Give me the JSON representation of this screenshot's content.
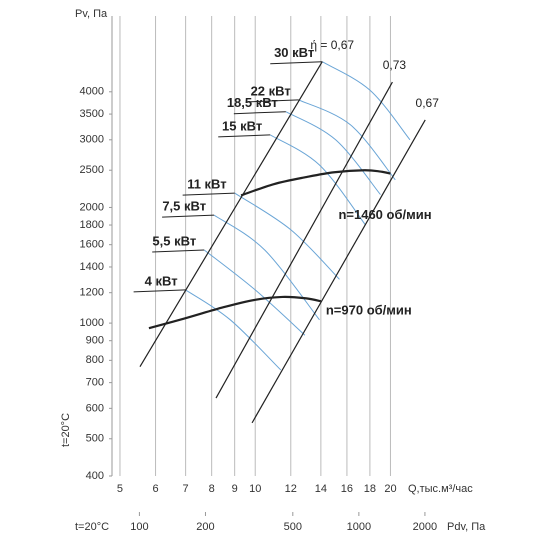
{
  "chart_data": {
    "type": "line",
    "y_label": "Pv, Па",
    "x_label": "Q,тыс.м³/час",
    "x2_label": "Pdv, Па",
    "x2_note": "t=20°C",
    "y_note": "t=20°C",
    "log_scale": true,
    "grid": "x",
    "xlim": [
      4.8,
      25
    ],
    "xticks": [
      5,
      6,
      7,
      8,
      9,
      10,
      12,
      14,
      16,
      18,
      20
    ],
    "ylim": [
      400,
      6300
    ],
    "yticks": [
      400,
      500,
      600,
      700,
      800,
      900,
      1000,
      1200,
      1400,
      1600,
      1800,
      2000,
      2500,
      3000,
      3500,
      4000
    ],
    "x2lim": [
      75,
      2200
    ],
    "x2ticks": [
      100,
      200,
      500,
      1000,
      2000
    ],
    "speed_curves": [
      {
        "name": "n=1460 об/мин",
        "color": "#222222",
        "x": [
          9.3,
          11,
          13,
          15,
          17.5,
          19,
          20
        ],
        "y": [
          2150,
          2300,
          2400,
          2470,
          2500,
          2480,
          2450
        ]
      },
      {
        "name": "n=970 об/мин",
        "color": "#222222",
        "x": [
          5.8,
          7,
          8.5,
          10,
          11.5,
          13,
          14
        ],
        "y": [
          970,
          1030,
          1100,
          1150,
          1170,
          1160,
          1140
        ]
      }
    ],
    "efficiency_lines": [
      {
        "name": "ή = 0,67",
        "color": "#222222",
        "x": [
          5.54,
          14.1
        ],
        "y": [
          770,
          4790
        ]
      },
      {
        "name": "0,73",
        "color": "#222222",
        "x": [
          8.18,
          20.2
        ],
        "y": [
          638,
          4240
        ]
      },
      {
        "name": "0,67",
        "color": "#222222",
        "x": [
          9.84,
          23.9
        ],
        "y": [
          550,
          3380
        ]
      }
    ],
    "power_curves": [
      {
        "name": "30 кВт",
        "color": "#6aa5d6",
        "x": [
          14.1,
          18.0,
          22.1
        ],
        "y": [
          4790,
          4040,
          3000
        ]
      },
      {
        "name": "22 кВт",
        "color": "#6aa5d6",
        "x": [
          12.5,
          16.3,
          20.5
        ],
        "y": [
          3810,
          3280,
          2360
        ]
      },
      {
        "name": "18,5 кВт",
        "color": "#6aa5d6",
        "x": [
          11.7,
          15.1,
          19.0
        ],
        "y": [
          3550,
          3000,
          2160
        ]
      },
      {
        "name": "15 кВт",
        "color": "#6aa5d6",
        "x": [
          10.8,
          13.9,
          17.6
        ],
        "y": [
          3090,
          2580,
          1800
        ]
      },
      {
        "name": "11 кВт",
        "color": "#6aa5d6",
        "x": [
          9.0,
          12.0,
          15.4
        ],
        "y": [
          2180,
          1750,
          1300
        ]
      },
      {
        "name": "7,5 кВт",
        "color": "#6aa5d6",
        "x": [
          8.1,
          10.5,
          13.9
        ],
        "y": [
          1910,
          1550,
          1020
        ]
      },
      {
        "name": "5,5 кВт",
        "color": "#6aa5d6",
        "x": [
          7.7,
          10.0,
          12.9
        ],
        "y": [
          1550,
          1220,
          930
        ]
      },
      {
        "name": "4 кВт",
        "color": "#6aa5d6",
        "x": [
          7.0,
          8.8,
          11.4
        ],
        "y": [
          1220,
          1020,
          755
        ]
      }
    ]
  }
}
